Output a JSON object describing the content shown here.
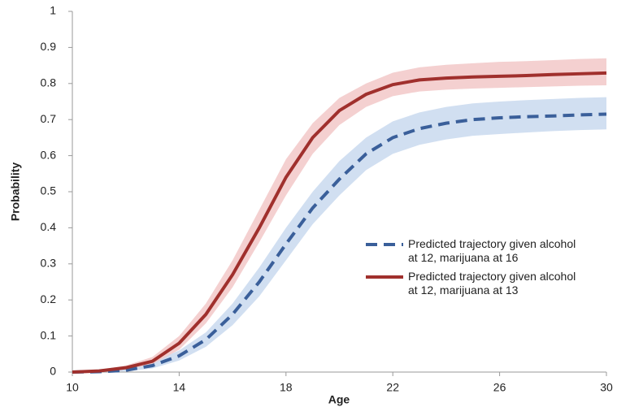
{
  "chart_data": {
    "type": "line",
    "x_label": "Age",
    "y_label": "Probability",
    "x": [
      10,
      11,
      12,
      13,
      14,
      15,
      16,
      17,
      18,
      19,
      20,
      21,
      22,
      23,
      24,
      25,
      26,
      27,
      28,
      29,
      30
    ],
    "xlim": [
      10,
      30
    ],
    "xticks": [
      10,
      14,
      18,
      22,
      26,
      30
    ],
    "ylim": [
      0,
      1
    ],
    "yticks": [
      0,
      0.1,
      0.2,
      0.3,
      0.4,
      0.5,
      0.6,
      0.7,
      0.8,
      0.9,
      1
    ],
    "grid": false,
    "series": [
      {
        "name": "Predicted trajectory given alcohol at 12, marijuana at 16",
        "color": "#3a5f9a",
        "band_color": "#c9d9ee",
        "dashed": true,
        "values": [
          0,
          0.001,
          0.005,
          0.018,
          0.045,
          0.09,
          0.16,
          0.25,
          0.355,
          0.455,
          0.535,
          0.605,
          0.65,
          0.675,
          0.69,
          0.7,
          0.705,
          0.708,
          0.71,
          0.713,
          0.715
        ],
        "band_high": [
          0.002,
          0.003,
          0.009,
          0.028,
          0.06,
          0.11,
          0.19,
          0.29,
          0.4,
          0.5,
          0.585,
          0.65,
          0.695,
          0.72,
          0.735,
          0.745,
          0.75,
          0.754,
          0.757,
          0.76,
          0.762
        ],
        "band_low": [
          0,
          0,
          0.002,
          0.01,
          0.032,
          0.07,
          0.13,
          0.21,
          0.31,
          0.41,
          0.49,
          0.56,
          0.605,
          0.63,
          0.645,
          0.655,
          0.66,
          0.664,
          0.668,
          0.671,
          0.673
        ]
      },
      {
        "name": "Predicted trajectory given alcohol at 12, marijuana at 13",
        "color": "#a0302d",
        "band_color": "#f2c8c8",
        "dashed": false,
        "values": [
          0,
          0.003,
          0.012,
          0.03,
          0.08,
          0.16,
          0.27,
          0.4,
          0.54,
          0.65,
          0.725,
          0.77,
          0.797,
          0.81,
          0.815,
          0.818,
          0.82,
          0.822,
          0.825,
          0.827,
          0.829
        ],
        "band_high": [
          0.003,
          0.006,
          0.018,
          0.042,
          0.1,
          0.19,
          0.31,
          0.45,
          0.59,
          0.69,
          0.76,
          0.8,
          0.83,
          0.845,
          0.852,
          0.856,
          0.86,
          0.862,
          0.865,
          0.868,
          0.87
        ],
        "band_low": [
          0,
          0.001,
          0.007,
          0.022,
          0.062,
          0.135,
          0.235,
          0.36,
          0.49,
          0.605,
          0.685,
          0.735,
          0.765,
          0.778,
          0.783,
          0.786,
          0.788,
          0.79,
          0.792,
          0.794,
          0.795
        ]
      }
    ]
  }
}
